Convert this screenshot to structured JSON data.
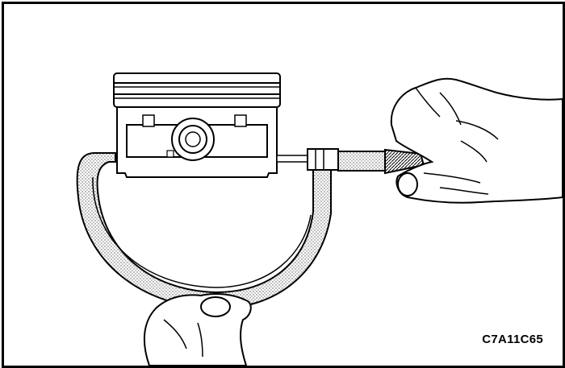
{
  "figure": {
    "code": "C7A11C65"
  },
  "colors": {
    "line": "#000000",
    "background": "#ffffff",
    "stipple": "#bdbdbd"
  }
}
